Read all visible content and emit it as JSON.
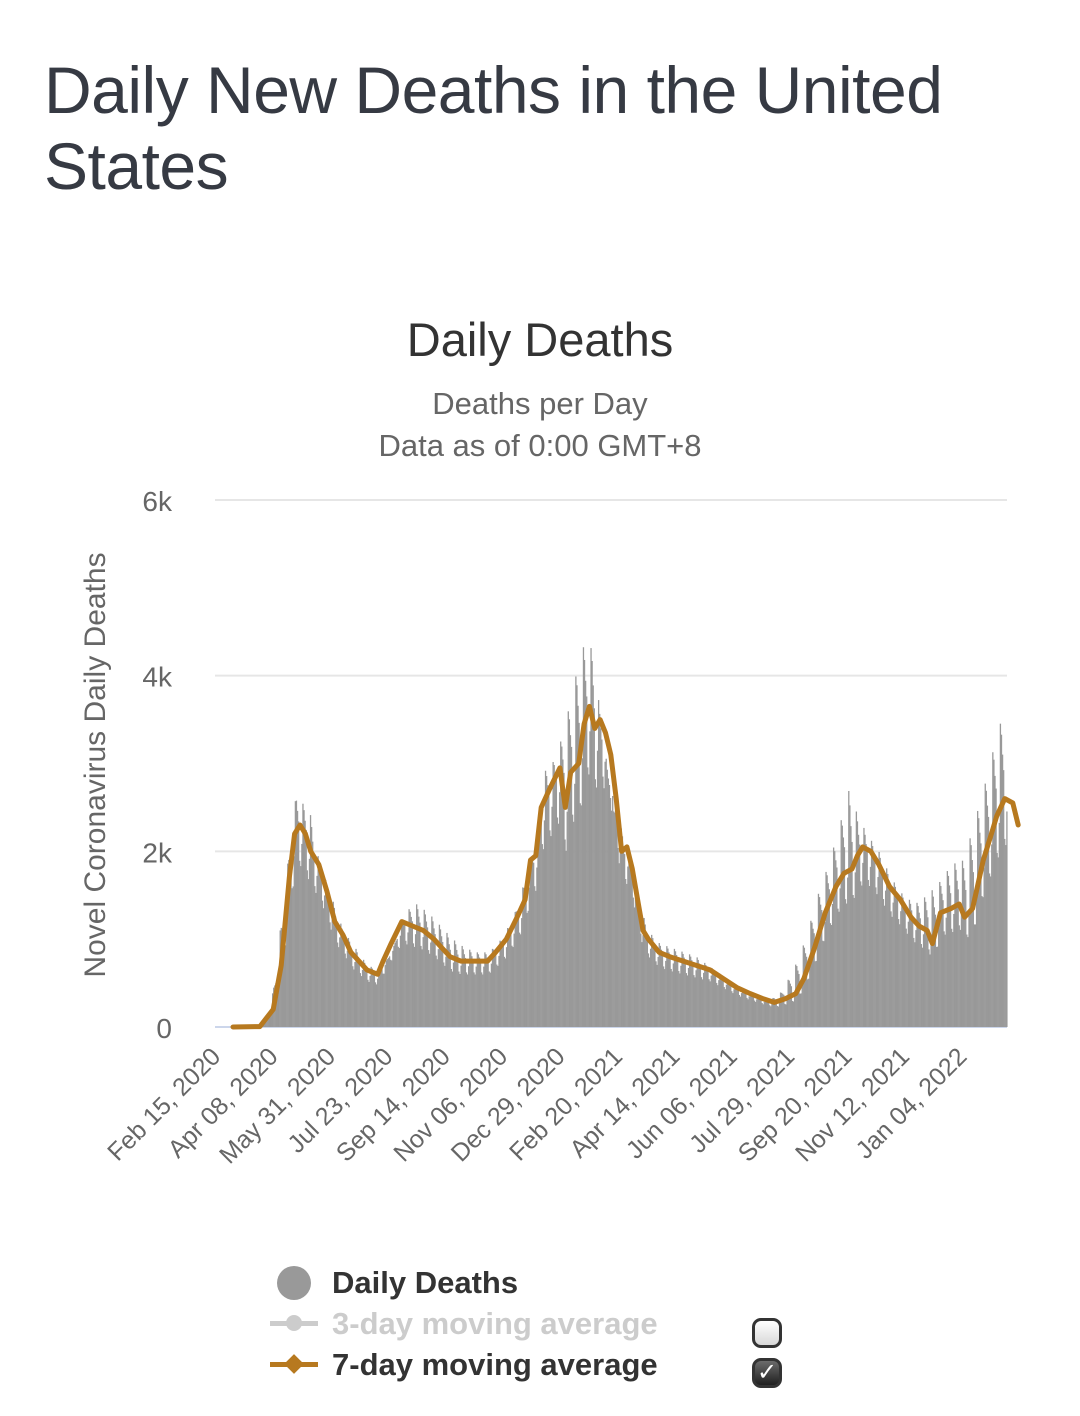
{
  "page": {
    "title": "Daily New Deaths in the United States"
  },
  "chart_data": {
    "type": "bar",
    "title": "Daily Deaths",
    "subtitle": "Deaths per Day",
    "subtitle2": "Data as of 0:00 GMT+8",
    "xlabel": "",
    "ylabel": "Novel Coronavirus Daily Deaths",
    "ylim": [
      0,
      6000
    ],
    "yticks": [
      0,
      2000,
      4000,
      6000
    ],
    "ytick_labels": [
      "0",
      "2k",
      "4k",
      "6k"
    ],
    "grid": true,
    "x_start": "Feb 15, 2020",
    "x_end_day": 725,
    "xtick_labels": [
      "Feb 15, 2020",
      "Apr 08, 2020",
      "May 31, 2020",
      "Jul 23, 2020",
      "Sep 14, 2020",
      "Nov 06, 2020",
      "Dec 29, 2020",
      "Feb 20, 2021",
      "Apr 14, 2021",
      "Jun 06, 2021",
      "Jul 29, 2021",
      "Sep 20, 2021",
      "Nov 12, 2021",
      "Jan 04, 2022"
    ],
    "xtick_interval_days": 53,
    "series": [
      {
        "name": "Daily Deaths",
        "type": "bar",
        "color": "#999999",
        "peak_points_day_value": [
          [
            0,
            0
          ],
          [
            20,
            5
          ],
          [
            30,
            150
          ],
          [
            40,
            1300
          ],
          [
            48,
            2300
          ],
          [
            52,
            2700
          ],
          [
            56,
            2550
          ],
          [
            62,
            2500
          ],
          [
            70,
            1900
          ],
          [
            80,
            1500
          ],
          [
            90,
            1100
          ],
          [
            100,
            900
          ],
          [
            110,
            700
          ],
          [
            120,
            650
          ],
          [
            130,
            850
          ],
          [
            140,
            1300
          ],
          [
            150,
            1400
          ],
          [
            160,
            1300
          ],
          [
            170,
            1150
          ],
          [
            180,
            1000
          ],
          [
            190,
            900
          ],
          [
            200,
            850
          ],
          [
            210,
            850
          ],
          [
            220,
            1000
          ],
          [
            230,
            1250
          ],
          [
            240,
            1700
          ],
          [
            250,
            2200
          ],
          [
            255,
            2900
          ],
          [
            262,
            3000
          ],
          [
            270,
            3300
          ],
          [
            280,
            3900
          ],
          [
            285,
            4300
          ],
          [
            290,
            4350
          ],
          [
            295,
            4300
          ],
          [
            300,
            3700
          ],
          [
            305,
            3200
          ],
          [
            310,
            2500
          ],
          [
            315,
            2400
          ],
          [
            320,
            2200
          ],
          [
            330,
            1600
          ],
          [
            340,
            1100
          ],
          [
            350,
            950
          ],
          [
            360,
            900
          ],
          [
            370,
            850
          ],
          [
            380,
            800
          ],
          [
            390,
            700
          ],
          [
            400,
            600
          ],
          [
            410,
            500
          ],
          [
            420,
            400
          ],
          [
            430,
            330
          ],
          [
            440,
            300
          ],
          [
            450,
            400
          ],
          [
            460,
            650
          ],
          [
            470,
            1000
          ],
          [
            480,
            1500
          ],
          [
            490,
            1900
          ],
          [
            500,
            2400
          ],
          [
            505,
            2700
          ],
          [
            510,
            2500
          ],
          [
            520,
            2200
          ],
          [
            530,
            2000
          ],
          [
            540,
            1700
          ],
          [
            550,
            1500
          ],
          [
            560,
            1400
          ],
          [
            570,
            1500
          ],
          [
            580,
            1650
          ],
          [
            590,
            1850
          ],
          [
            600,
            1900
          ],
          [
            610,
            2400
          ],
          [
            620,
            2900
          ],
          [
            628,
            3400
          ],
          [
            635,
            3600
          ],
          [
            640,
            3300
          ],
          [
            645,
            3200
          ]
        ]
      },
      {
        "name": "3-day moving average",
        "type": "line",
        "color": "#cccccc",
        "visible": false
      },
      {
        "name": "7-day moving average",
        "type": "line",
        "color": "#b7791f",
        "visible": true,
        "points_day_value": [
          [
            0,
            0
          ],
          [
            20,
            5
          ],
          [
            30,
            200
          ],
          [
            36,
            700
          ],
          [
            42,
            1700
          ],
          [
            46,
            2200
          ],
          [
            50,
            2300
          ],
          [
            54,
            2200
          ],
          [
            58,
            2000
          ],
          [
            64,
            1850
          ],
          [
            70,
            1550
          ],
          [
            76,
            1200
          ],
          [
            82,
            1050
          ],
          [
            88,
            850
          ],
          [
            94,
            750
          ],
          [
            100,
            650
          ],
          [
            108,
            600
          ],
          [
            112,
            750
          ],
          [
            118,
            950
          ],
          [
            126,
            1200
          ],
          [
            134,
            1150
          ],
          [
            142,
            1100
          ],
          [
            150,
            1000
          ],
          [
            156,
            900
          ],
          [
            162,
            800
          ],
          [
            170,
            750
          ],
          [
            180,
            750
          ],
          [
            190,
            750
          ],
          [
            196,
            850
          ],
          [
            204,
            1000
          ],
          [
            212,
            1250
          ],
          [
            218,
            1450
          ],
          [
            222,
            1900
          ],
          [
            226,
            1950
          ],
          [
            230,
            2500
          ],
          [
            236,
            2700
          ],
          [
            244,
            2950
          ],
          [
            248,
            2500
          ],
          [
            252,
            2900
          ],
          [
            258,
            3000
          ],
          [
            262,
            3450
          ],
          [
            266,
            3650
          ],
          [
            270,
            3400
          ],
          [
            274,
            3500
          ],
          [
            278,
            3350
          ],
          [
            282,
            3100
          ],
          [
            286,
            2600
          ],
          [
            290,
            2000
          ],
          [
            294,
            2050
          ],
          [
            298,
            1800
          ],
          [
            302,
            1450
          ],
          [
            306,
            1100
          ],
          [
            310,
            1000
          ],
          [
            318,
            850
          ],
          [
            326,
            800
          ],
          [
            336,
            750
          ],
          [
            346,
            700
          ],
          [
            356,
            650
          ],
          [
            366,
            550
          ],
          [
            376,
            450
          ],
          [
            386,
            380
          ],
          [
            396,
            320
          ],
          [
            404,
            280
          ],
          [
            412,
            320
          ],
          [
            420,
            380
          ],
          [
            426,
            550
          ],
          [
            434,
            900
          ],
          [
            442,
            1300
          ],
          [
            450,
            1600
          ],
          [
            456,
            1750
          ],
          [
            462,
            1800
          ],
          [
            466,
            1950
          ],
          [
            470,
            2050
          ],
          [
            476,
            2000
          ],
          [
            482,
            1850
          ],
          [
            490,
            1600
          ],
          [
            498,
            1450
          ],
          [
            506,
            1250
          ],
          [
            512,
            1150
          ],
          [
            518,
            1100
          ],
          [
            522,
            950
          ],
          [
            528,
            1300
          ],
          [
            536,
            1350
          ],
          [
            542,
            1400
          ],
          [
            546,
            1250
          ],
          [
            552,
            1350
          ],
          [
            560,
            1900
          ],
          [
            566,
            2200
          ],
          [
            570,
            2400
          ],
          [
            576,
            2600
          ],
          [
            582,
            2550
          ],
          [
            586,
            2300
          ]
        ]
      }
    ],
    "legend": [
      {
        "label": "Daily Deaths",
        "enabled": true
      },
      {
        "label": "3-day moving average",
        "enabled": false,
        "checked": false
      },
      {
        "label": "7-day moving average",
        "enabled": true,
        "checked": true
      }
    ],
    "legend_position": "bottom-center"
  }
}
